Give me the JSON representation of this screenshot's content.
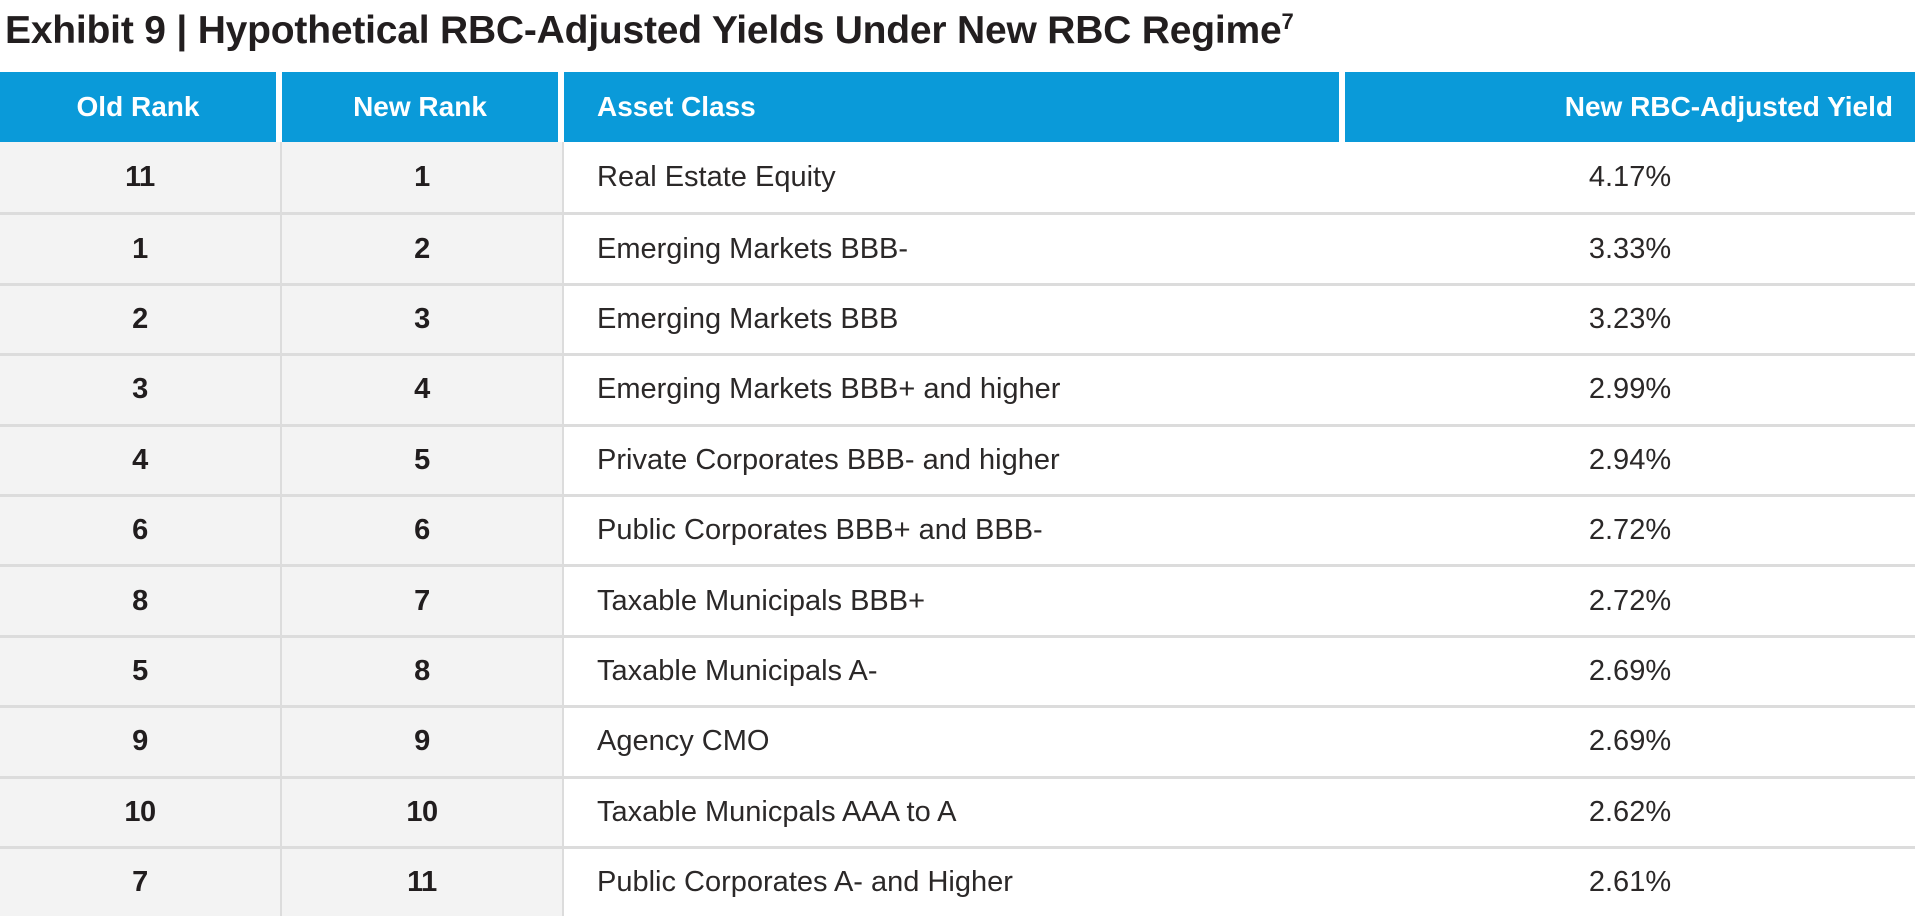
{
  "title": {
    "text": "Exhibit 9 | Hypothetical RBC-Adjusted Yields Under New RBC Regime",
    "superscript": "7"
  },
  "colors": {
    "header_blue": "#0A9AD9",
    "rank_column_bg": "#F3F3F3",
    "row_separator": "#DCDCDC",
    "text": "#221E1F"
  },
  "table": {
    "headers": [
      "Old Rank",
      "New Rank",
      "Asset Class",
      "New RBC-Adjusted Yield"
    ],
    "rows": [
      {
        "old_rank": "11",
        "new_rank": "1",
        "asset_class": "Real Estate Equity",
        "yield": "4.17%"
      },
      {
        "old_rank": "1",
        "new_rank": "2",
        "asset_class": "Emerging Markets BBB-",
        "yield": "3.33%"
      },
      {
        "old_rank": "2",
        "new_rank": "3",
        "asset_class": "Emerging Markets BBB",
        "yield": "3.23%"
      },
      {
        "old_rank": "3",
        "new_rank": "4",
        "asset_class": "Emerging Markets BBB+ and higher",
        "yield": "2.99%"
      },
      {
        "old_rank": "4",
        "new_rank": "5",
        "asset_class": "Private Corporates BBB- and higher",
        "yield": "2.94%"
      },
      {
        "old_rank": "6",
        "new_rank": "6",
        "asset_class": "Public Corporates BBB+ and BBB-",
        "yield": "2.72%"
      },
      {
        "old_rank": "8",
        "new_rank": "7",
        "asset_class": "Taxable Municipals BBB+",
        "yield": "2.72%"
      },
      {
        "old_rank": "5",
        "new_rank": "8",
        "asset_class": "Taxable Municipals A-",
        "yield": "2.69%"
      },
      {
        "old_rank": "9",
        "new_rank": "9",
        "asset_class": "Agency CMO",
        "yield": "2.69%"
      },
      {
        "old_rank": "10",
        "new_rank": "10",
        "asset_class": "Taxable Municpals AAA to A",
        "yield": "2.62%"
      },
      {
        "old_rank": "7",
        "new_rank": "11",
        "asset_class": "Public Corporates A- and Higher",
        "yield": "2.61%"
      }
    ]
  }
}
